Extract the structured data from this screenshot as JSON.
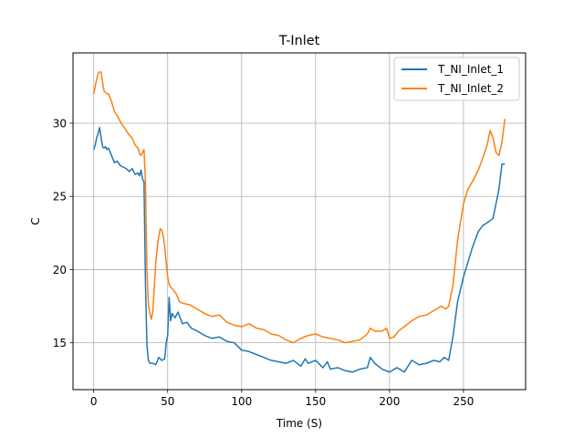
{
  "chart_data": {
    "type": "line",
    "title": "T-Inlet",
    "xlabel": "Time (S)",
    "ylabel": "C",
    "xlim": [
      -14,
      292
    ],
    "ylim": [
      11.8,
      34.8
    ],
    "xticks": [
      0,
      50,
      100,
      150,
      200,
      250
    ],
    "yticks": [
      15,
      20,
      25,
      30
    ],
    "grid": true,
    "legend_position": "top-right",
    "series": [
      {
        "name": "T_NI_Inlet_1",
        "color": "#1f77b4",
        "x": [
          0,
          1,
          2,
          3,
          4,
          5,
          6,
          7,
          8,
          9,
          10,
          12,
          14,
          16,
          18,
          20,
          22,
          24,
          26,
          28,
          30,
          31,
          32,
          33,
          34,
          35,
          36,
          37,
          38,
          40,
          42,
          44,
          46,
          48,
          49,
          50,
          51,
          52,
          53,
          55,
          57,
          60,
          63,
          66,
          70,
          75,
          80,
          85,
          90,
          95,
          100,
          105,
          110,
          115,
          120,
          125,
          130,
          135,
          140,
          143,
          145,
          150,
          155,
          158,
          160,
          165,
          170,
          175,
          180,
          185,
          187,
          190,
          195,
          200,
          205,
          210,
          215,
          220,
          225,
          230,
          234,
          237,
          240,
          243,
          246,
          250,
          253,
          256,
          260,
          263,
          266,
          270,
          272,
          274,
          276,
          278
        ],
        "y": [
          28.2,
          28.5,
          29.0,
          29.3,
          29.7,
          29.0,
          28.4,
          28.3,
          28.4,
          28.2,
          28.3,
          27.8,
          27.3,
          27.4,
          27.1,
          27.0,
          26.9,
          26.7,
          26.9,
          26.5,
          26.6,
          26.4,
          26.8,
          26.2,
          26.0,
          19.0,
          14.8,
          13.8,
          13.6,
          13.6,
          13.5,
          14.0,
          13.8,
          13.9,
          15.0,
          15.5,
          18.1,
          16.5,
          17.0,
          16.7,
          17.1,
          16.3,
          16.4,
          16.0,
          15.8,
          15.5,
          15.3,
          15.4,
          15.1,
          15.0,
          14.5,
          14.4,
          14.2,
          14.0,
          13.8,
          13.7,
          13.6,
          13.8,
          13.4,
          13.9,
          13.6,
          13.8,
          13.3,
          13.7,
          13.2,
          13.3,
          13.1,
          13.0,
          13.2,
          13.3,
          14.0,
          13.6,
          13.2,
          13.0,
          13.3,
          13.0,
          13.8,
          13.5,
          13.6,
          13.8,
          13.7,
          14.0,
          13.8,
          15.5,
          17.8,
          19.5,
          20.5,
          21.5,
          22.6,
          23.0,
          23.2,
          23.5,
          24.5,
          25.5,
          27.2,
          27.2
        ]
      },
      {
        "name": "T_NI_Inlet_2",
        "color": "#ff7f0e",
        "x": [
          0,
          1,
          2,
          3,
          4,
          5,
          6,
          7,
          8,
          9,
          10,
          12,
          14,
          16,
          18,
          20,
          22,
          24,
          26,
          28,
          30,
          31,
          32,
          33,
          34,
          35,
          36,
          37,
          38,
          39,
          40,
          41,
          42,
          43,
          44,
          45,
          46,
          47,
          48,
          49,
          50,
          51,
          52,
          54,
          56,
          58,
          60,
          65,
          70,
          75,
          80,
          85,
          90,
          95,
          100,
          105,
          110,
          115,
          120,
          125,
          130,
          135,
          140,
          145,
          150,
          155,
          160,
          165,
          170,
          175,
          180,
          185,
          187,
          190,
          195,
          198,
          200,
          203,
          206,
          210,
          215,
          220,
          225,
          230,
          235,
          238,
          240,
          243,
          246,
          250,
          253,
          256,
          260,
          263,
          266,
          268,
          270,
          272,
          274,
          276,
          278
        ],
        "y": [
          32.0,
          32.5,
          33.0,
          33.4,
          33.5,
          33.5,
          32.8,
          32.2,
          32.1,
          32.0,
          32.0,
          31.5,
          30.8,
          30.5,
          30.1,
          29.8,
          29.5,
          29.2,
          29.0,
          28.5,
          28.3,
          27.9,
          27.8,
          28.0,
          28.2,
          26.0,
          20.0,
          17.6,
          17.0,
          16.6,
          17.2,
          18.8,
          20.5,
          21.5,
          22.3,
          22.8,
          22.7,
          22.3,
          21.6,
          20.5,
          19.5,
          19.0,
          18.8,
          18.6,
          18.3,
          17.8,
          17.7,
          17.6,
          17.3,
          17.0,
          16.8,
          16.9,
          16.4,
          16.2,
          16.1,
          16.3,
          16.0,
          15.9,
          15.6,
          15.5,
          15.2,
          15.0,
          15.3,
          15.5,
          15.6,
          15.4,
          15.3,
          15.2,
          15.0,
          15.1,
          15.2,
          15.6,
          16.0,
          15.8,
          15.8,
          16.0,
          15.3,
          15.4,
          15.8,
          16.1,
          16.5,
          16.8,
          16.9,
          17.2,
          17.5,
          17.3,
          17.5,
          19.0,
          22.0,
          24.5,
          25.5,
          26.0,
          26.8,
          27.6,
          28.5,
          29.5,
          29.0,
          28.0,
          27.8,
          28.7,
          30.3
        ]
      }
    ]
  }
}
